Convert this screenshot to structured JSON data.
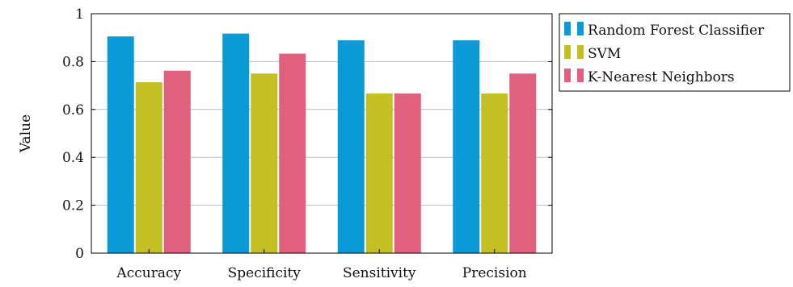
{
  "chart_data": {
    "type": "bar",
    "title": "",
    "xlabel": "",
    "ylabel": "Value",
    "ylim": [
      0,
      1
    ],
    "yticks": [
      0,
      0.2,
      0.4,
      0.6,
      0.8,
      1
    ],
    "ytick_labels": [
      "0",
      "0.2",
      "0.4",
      "0.6",
      "0.8",
      "1"
    ],
    "grid": "horizontal",
    "legend_position": "outside-right-top",
    "categories": [
      "Accuracy",
      "Specificity",
      "Sensitivity",
      "Precision"
    ],
    "series": [
      {
        "name": "Random Forest Classifier",
        "color": "#0b9ad8",
        "values": [
          0.905,
          0.917,
          0.889,
          0.889
        ]
      },
      {
        "name": "SVM",
        "color": "#c4bf22",
        "values": [
          0.714,
          0.75,
          0.667,
          0.667
        ]
      },
      {
        "name": "K-Nearest Neighbors",
        "color": "#e0607e",
        "values": [
          0.762,
          0.833,
          0.667,
          0.75
        ]
      }
    ]
  }
}
